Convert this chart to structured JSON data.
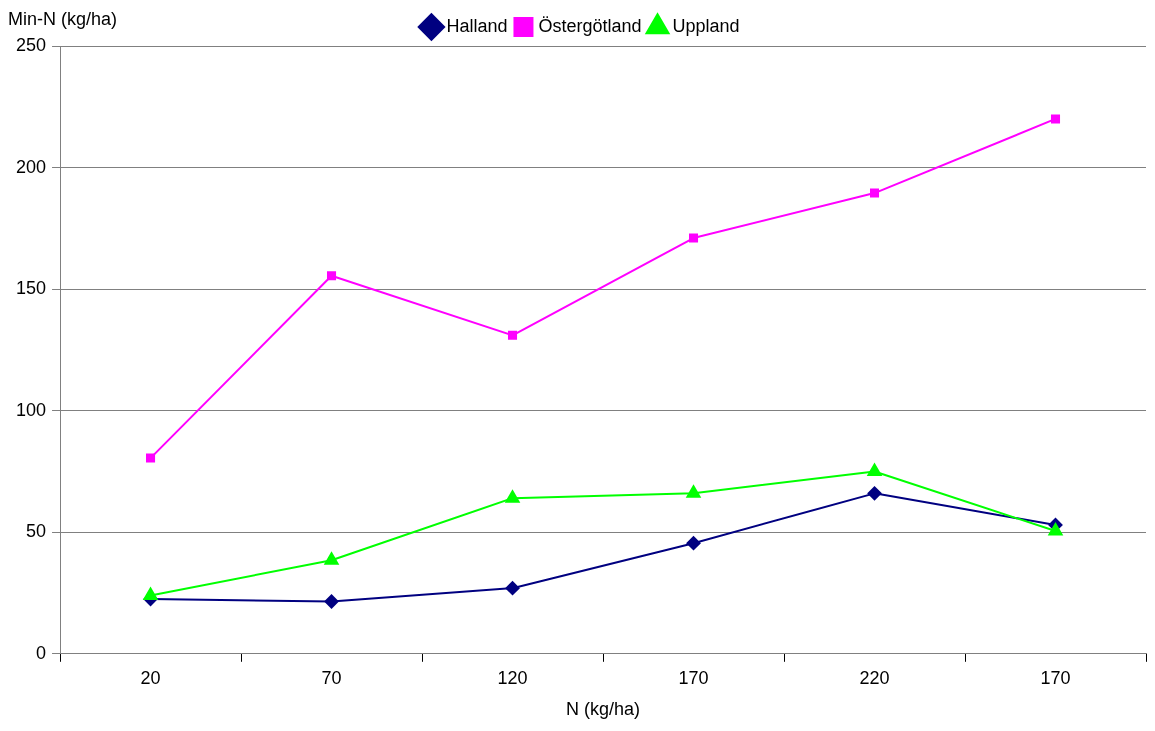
{
  "chart_data": {
    "type": "line",
    "xlabel": "N (kg/ha)",
    "ylabel": "Min-N (kg/ha)",
    "categories": [
      "20",
      "70",
      "120",
      "170",
      "220",
      "170"
    ],
    "series": [
      {
        "name": "Halland",
        "color": "#000080",
        "marker": "diamond",
        "values": [
          22.5,
          21.5,
          27,
          45.5,
          66,
          53
        ]
      },
      {
        "name": "Östergötland",
        "color": "#ff00ff",
        "marker": "square",
        "values": [
          80.5,
          155.5,
          131,
          171,
          189.5,
          220
        ]
      },
      {
        "name": "Uppland",
        "color": "#00ff00",
        "marker": "triangle",
        "values": [
          24,
          38.5,
          64,
          66,
          75,
          50.5
        ]
      }
    ],
    "ylim": [
      0,
      250
    ],
    "yticks": [
      0,
      50,
      100,
      150,
      200,
      250
    ],
    "grid": "y",
    "legend": "top",
    "line_style": "solid"
  }
}
